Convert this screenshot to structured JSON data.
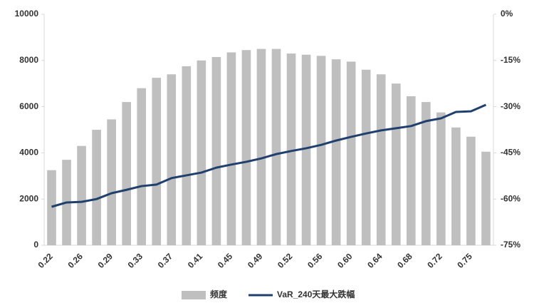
{
  "chart_data": {
    "type": "bar_line",
    "categories": [
      "0.22",
      null,
      "0.26",
      null,
      "0.29",
      null,
      "0.33",
      null,
      "0.37",
      null,
      "0.41",
      null,
      "0.45",
      null,
      "0.49",
      null,
      "0.52",
      null,
      "0.56",
      null,
      "0.60",
      null,
      "0.64",
      null,
      "0.68",
      null,
      "0.72",
      null,
      "0.75",
      null
    ],
    "series": [
      {
        "name": "频度",
        "color": "#bfbfbf",
        "values": [
          3250,
          3700,
          4300,
          5000,
          5450,
          6200,
          6800,
          7250,
          7400,
          7750,
          8000,
          8150,
          8350,
          8450,
          8500,
          8500,
          8300,
          8250,
          8200,
          8050,
          7950,
          7600,
          7400,
          7000,
          6450,
          6200,
          5750,
          5100,
          4700,
          4050
        ]
      },
      {
        "name": "VaR_240天最大跌幅",
        "color": "#1f3f6e",
        "axis": "y2",
        "values": [
          -62.5,
          -61.1,
          -60.9,
          -60,
          -58.1,
          -57,
          -55.8,
          -55.3,
          -53.2,
          -52.3,
          -51.4,
          -49.8,
          -48.8,
          -47.9,
          -46.8,
          -45.4,
          -44.4,
          -43.5,
          -42.4,
          -41,
          -39.8,
          -38.7,
          -37.7,
          -37,
          -36.3,
          -34.7,
          -33.8,
          -31.7,
          -31.5,
          -29.4
        ]
      }
    ],
    "ylim": [
      0,
      10000
    ],
    "yticks": [
      0,
      2000,
      4000,
      6000,
      8000,
      10000
    ],
    "y2lim": [
      -75,
      0
    ],
    "y2ticks": [
      {
        "value": -75,
        "label": "-75%"
      },
      {
        "value": -60,
        "label": "-60%"
      },
      {
        "value": -45,
        "label": "-45%"
      },
      {
        "value": -30,
        "label": "-30%"
      },
      {
        "value": -15,
        "label": "-15%"
      },
      {
        "value": 0,
        "label": "0%"
      }
    ],
    "grid": false,
    "legend": "bottom"
  }
}
